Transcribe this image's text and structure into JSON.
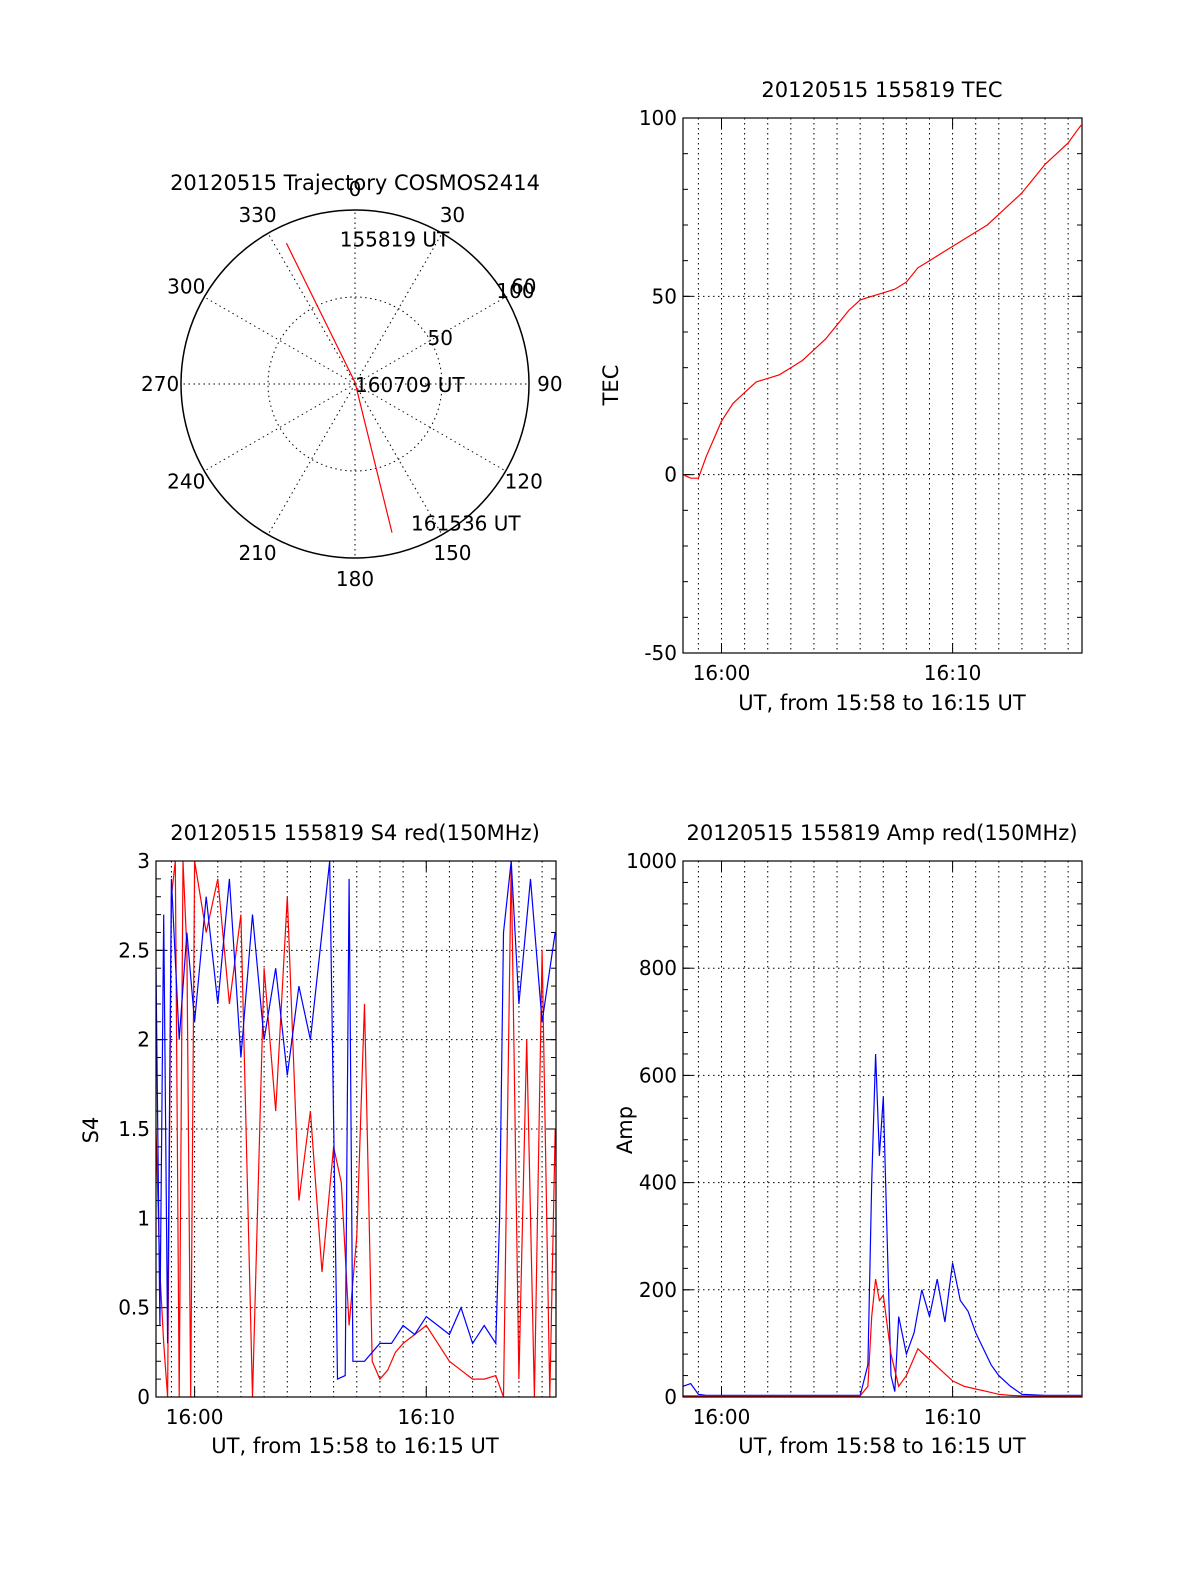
{
  "chart_data": [
    {
      "id": "trajectory",
      "type": "scatter",
      "projection": "polar",
      "title": "20120515 Trajectory COSMOS2414",
      "azimuth_labels": [
        "0",
        "30",
        "60",
        "90",
        "120",
        "150",
        "180",
        "210",
        "240",
        "270",
        "300",
        "330"
      ],
      "radial_labels": [
        "50",
        "100"
      ],
      "radial_max": 100,
      "grid": true,
      "series": [
        {
          "color": "#ff0000",
          "points": [
            {
              "azimuth": 334,
              "radius": 90
            },
            {
              "azimuth": 0,
              "radius": 1
            },
            {
              "azimuth": 166,
              "radius": 88
            }
          ]
        }
      ],
      "annotations": [
        {
          "text": "155819 UT",
          "azimuth": 354,
          "radius": 84
        },
        {
          "text": "160709 UT",
          "azimuth": 90,
          "radius": 0
        },
        {
          "text": "161536 UT",
          "azimuth": 158,
          "radius": 86
        }
      ]
    },
    {
      "id": "tec",
      "type": "line",
      "title": "20120515 155819 TEC",
      "xlabel": "UT, from 15:58 to 16:15 UT",
      "ylabel": "TEC",
      "xlim": [
        "15:58:20",
        "16:15:36"
      ],
      "ylim": [
        -50,
        100
      ],
      "x_ticks": [
        "16:00",
        "16:10"
      ],
      "y_ticks": [
        "-50",
        "0",
        "50",
        "100"
      ],
      "grid": true,
      "series": [
        {
          "color": "#ff0000",
          "x": [
            "15:58:20",
            "15:58:40",
            "15:59:00",
            "15:59:20",
            "15:59:40",
            "16:00:00",
            "16:00:30",
            "16:01:00",
            "16:01:30",
            "16:02:00",
            "16:02:30",
            "16:03:00",
            "16:03:30",
            "16:04:00",
            "16:04:30",
            "16:05:00",
            "16:05:30",
            "16:06:00",
            "16:06:30",
            "16:07:00",
            "16:07:30",
            "16:08:00",
            "16:08:30",
            "16:09:00",
            "16:09:30",
            "16:10:00",
            "16:10:30",
            "16:11:00",
            "16:11:30",
            "16:12:00",
            "16:12:30",
            "16:13:00",
            "16:13:30",
            "16:14:00",
            "16:14:30",
            "16:15:00",
            "16:15:20",
            "16:15:34"
          ],
          "values": [
            0,
            -1,
            -1,
            5,
            10,
            15,
            20,
            23,
            26,
            27,
            28,
            30,
            32,
            35,
            38,
            42,
            46,
            49,
            50,
            51,
            52,
            54,
            58,
            60,
            62,
            64,
            66,
            68,
            70,
            73,
            76,
            79,
            83,
            87,
            90,
            93,
            96,
            98
          ]
        }
      ]
    },
    {
      "id": "s4",
      "type": "line",
      "title": "20120515 155819 S4 red(150MHz)",
      "xlabel": "UT, from 15:58 to 16:15 UT",
      "ylabel": "S4",
      "xlim": [
        "15:58:20",
        "16:15:36"
      ],
      "ylim": [
        0,
        3
      ],
      "x_ticks": [
        "16:00",
        "16:10"
      ],
      "y_ticks": [
        "0",
        "0.5",
        "1",
        "1.5",
        "2",
        "2.5",
        "3"
      ],
      "grid": true,
      "series": [
        {
          "color": "#ff0000",
          "x": [
            "15:58:20",
            "15:58:30",
            "15:58:40",
            "15:58:50",
            "15:59:00",
            "15:59:10",
            "15:59:20",
            "15:59:30",
            "15:59:40",
            "15:59:50",
            "16:00:00",
            "16:00:30",
            "16:01:00",
            "16:01:30",
            "16:02:00",
            "16:02:30",
            "16:03:00",
            "16:03:30",
            "16:04:00",
            "16:04:30",
            "16:05:00",
            "16:05:30",
            "16:06:00",
            "16:06:20",
            "16:06:40",
            "16:07:00",
            "16:07:20",
            "16:07:40",
            "16:08:00",
            "16:08:20",
            "16:08:40",
            "16:09:00",
            "16:09:30",
            "16:10:00",
            "16:10:30",
            "16:11:00",
            "16:11:30",
            "16:12:00",
            "16:12:30",
            "16:13:00",
            "16:13:20",
            "16:13:40",
            "16:14:00",
            "16:14:20",
            "16:14:40",
            "16:15:00",
            "16:15:20",
            "16:15:34"
          ],
          "values": [
            1.5,
            0.7,
            0.3,
            0,
            2.8,
            3,
            0,
            3,
            2.5,
            0,
            3,
            2.6,
            2.9,
            2.2,
            2.7,
            0,
            2.4,
            1.6,
            2.8,
            1.1,
            1.6,
            0.7,
            1.4,
            1.2,
            0.4,
            0.9,
            2.2,
            0.2,
            0.1,
            0.15,
            0.25,
            0.3,
            0.35,
            0.4,
            0.3,
            0.2,
            0.15,
            0.1,
            0.1,
            0.12,
            0,
            3,
            0.1,
            2,
            0,
            2.5,
            0,
            1.5
          ]
        },
        {
          "color": "#0000ff",
          "x": [
            "15:58:20",
            "15:58:30",
            "15:58:40",
            "15:58:50",
            "15:59:00",
            "15:59:20",
            "15:59:40",
            "16:00:00",
            "16:00:30",
            "16:01:00",
            "16:01:30",
            "16:02:00",
            "16:02:30",
            "16:03:00",
            "16:03:30",
            "16:04:00",
            "16:04:30",
            "16:05:00",
            "16:05:30",
            "16:05:50",
            "16:06:10",
            "16:06:30",
            "16:06:40",
            "16:06:50",
            "16:07:00",
            "16:07:20",
            "16:07:40",
            "16:08:00",
            "16:08:30",
            "16:09:00",
            "16:09:30",
            "16:10:00",
            "16:10:30",
            "16:11:00",
            "16:11:30",
            "16:12:00",
            "16:12:30",
            "16:13:00",
            "16:13:10",
            "16:13:20",
            "16:13:40",
            "16:14:00",
            "16:14:30",
            "16:15:00",
            "16:15:34"
          ],
          "values": [
            2.4,
            0.4,
            2.7,
            0.3,
            2.9,
            2.0,
            2.6,
            2.1,
            2.8,
            2.2,
            2.9,
            1.9,
            2.7,
            2.0,
            2.4,
            1.8,
            2.3,
            2.0,
            2.6,
            3.0,
            0.1,
            0.12,
            2.9,
            0.2,
            0.2,
            0.2,
            0.25,
            0.3,
            0.3,
            0.4,
            0.35,
            0.45,
            0.4,
            0.35,
            0.5,
            0.3,
            0.4,
            0.3,
            1.0,
            2.6,
            3.0,
            2.2,
            2.9,
            2.1,
            2.6
          ]
        }
      ]
    },
    {
      "id": "amp",
      "type": "line",
      "title": "20120515 155819 Amp red(150MHz)",
      "xlabel": "UT, from 15:58 to 16:15 UT",
      "ylabel": "Amp",
      "xlim": [
        "15:58:20",
        "16:15:36"
      ],
      "ylim": [
        0,
        1000
      ],
      "x_ticks": [
        "16:00",
        "16:10"
      ],
      "y_ticks": [
        "0",
        "200",
        "400",
        "600",
        "800",
        "1000"
      ],
      "grid": true,
      "series": [
        {
          "color": "#0000ff",
          "x": [
            "15:58:20",
            "15:58:40",
            "15:59:00",
            "15:59:20",
            "16:00:00",
            "16:02:00",
            "16:04:00",
            "16:06:00",
            "16:06:20",
            "16:06:30",
            "16:06:40",
            "16:06:50",
            "16:07:00",
            "16:07:10",
            "16:07:20",
            "16:07:30",
            "16:07:40",
            "16:08:00",
            "16:08:20",
            "16:08:40",
            "16:09:00",
            "16:09:20",
            "16:09:40",
            "16:10:00",
            "16:10:20",
            "16:10:40",
            "16:11:00",
            "16:11:20",
            "16:11:40",
            "16:12:00",
            "16:12:30",
            "16:13:00",
            "16:14:00",
            "16:15:00",
            "16:15:34"
          ],
          "values": [
            20,
            25,
            5,
            3,
            3,
            3,
            3,
            3,
            60,
            400,
            640,
            450,
            560,
            300,
            40,
            10,
            150,
            80,
            120,
            200,
            150,
            220,
            140,
            250,
            180,
            160,
            120,
            90,
            60,
            40,
            20,
            5,
            3,
            3,
            3
          ]
        },
        {
          "color": "#ff0000",
          "x": [
            "15:58:20",
            "16:06:00",
            "16:06:20",
            "16:06:30",
            "16:06:40",
            "16:06:50",
            "16:07:00",
            "16:07:20",
            "16:07:40",
            "16:08:00",
            "16:08:30",
            "16:09:00",
            "16:09:30",
            "16:10:00",
            "16:10:30",
            "16:11:00",
            "16:11:30",
            "16:12:00",
            "16:12:30",
            "16:13:00",
            "16:15:34"
          ],
          "values": [
            2,
            2,
            20,
            150,
            220,
            180,
            190,
            80,
            20,
            40,
            90,
            70,
            50,
            30,
            20,
            15,
            10,
            5,
            3,
            2,
            2
          ]
        }
      ]
    }
  ]
}
